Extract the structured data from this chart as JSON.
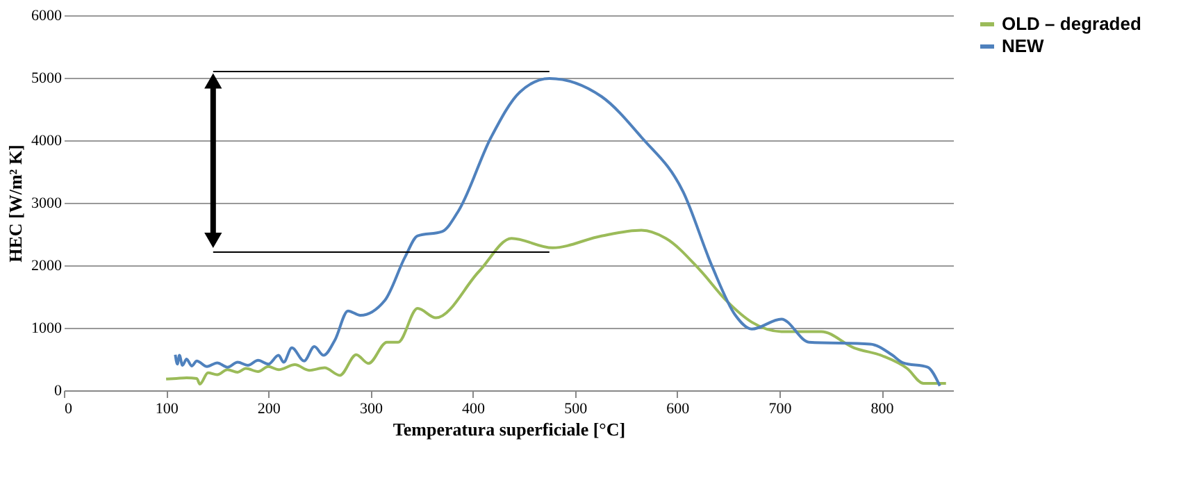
{
  "chart_data": {
    "type": "line",
    "xlabel": "Temperatura superficiale [°C]",
    "ylabel": "HEC [W/m² K]",
    "xlim": [
      0,
      870
    ],
    "xticks": [
      0,
      100,
      200,
      300,
      400,
      500,
      600,
      700,
      800
    ],
    "ylim": [
      0,
      6000
    ],
    "yticks": [
      0,
      1000,
      2000,
      3000,
      4000,
      5000,
      6000
    ],
    "grid": "y",
    "legend": "right",
    "line_style": "solid",
    "series": [
      {
        "name": "OLD – degraded",
        "color": "#9bbb59",
        "x": [
          100,
          110,
          120,
          130,
          133,
          141,
          150,
          160,
          170,
          178,
          190,
          200,
          210,
          226,
          240,
          255,
          270,
          286,
          298,
          316,
          327,
          346,
          364,
          406,
          438,
          478,
          526,
          565,
          589,
          622,
          649,
          673,
          702,
          741,
          773,
          801,
          825,
          841,
          863
        ],
        "values": [
          180,
          190,
          200,
          190,
          100,
          280,
          250,
          330,
          290,
          350,
          300,
          380,
          330,
          410,
          320,
          360,
          240,
          570,
          430,
          770,
          770,
          1310,
          1160,
          1900,
          2430,
          2280,
          2470,
          2560,
          2430,
          1930,
          1420,
          1090,
          940,
          940,
          680,
          550,
          350,
          110,
          110
        ]
      },
      {
        "name": "NEW",
        "color": "#4f81bd",
        "x": [
          109,
          111,
          113,
          116,
          120,
          125,
          130,
          140,
          150,
          160,
          170,
          180,
          190,
          200,
          210,
          215,
          223,
          235,
          245,
          254,
          265,
          278,
          290,
          314,
          334,
          346,
          370,
          386,
          418,
          446,
          475,
          526,
          565,
          606,
          634,
          657,
          673,
          702,
          729,
          789,
          810,
          821,
          845,
          857
        ],
        "values": [
          570,
          420,
          560,
          400,
          500,
          390,
          470,
          380,
          440,
          370,
          450,
          400,
          480,
          420,
          560,
          450,
          680,
          470,
          700,
          560,
          800,
          1270,
          1200,
          1440,
          2140,
          2470,
          2540,
          2870,
          4050,
          4770,
          4990,
          4700,
          4050,
          3170,
          1990,
          1200,
          980,
          1140,
          770,
          740,
          570,
          440,
          370,
          70
        ]
      },
      {
        "color": "#000000",
        "x": [
          146,
          475
        ],
        "values": [
          5100,
          5100
        ]
      },
      {
        "color": "#000000",
        "x": [
          146,
          475
        ],
        "values": [
          2210,
          2210
        ]
      },
      {
        "color": "#000000",
        "x": [
          146,
          146
        ],
        "values": [
          2400,
          4950
        ],
        "marker": "triangle"
      }
    ]
  }
}
